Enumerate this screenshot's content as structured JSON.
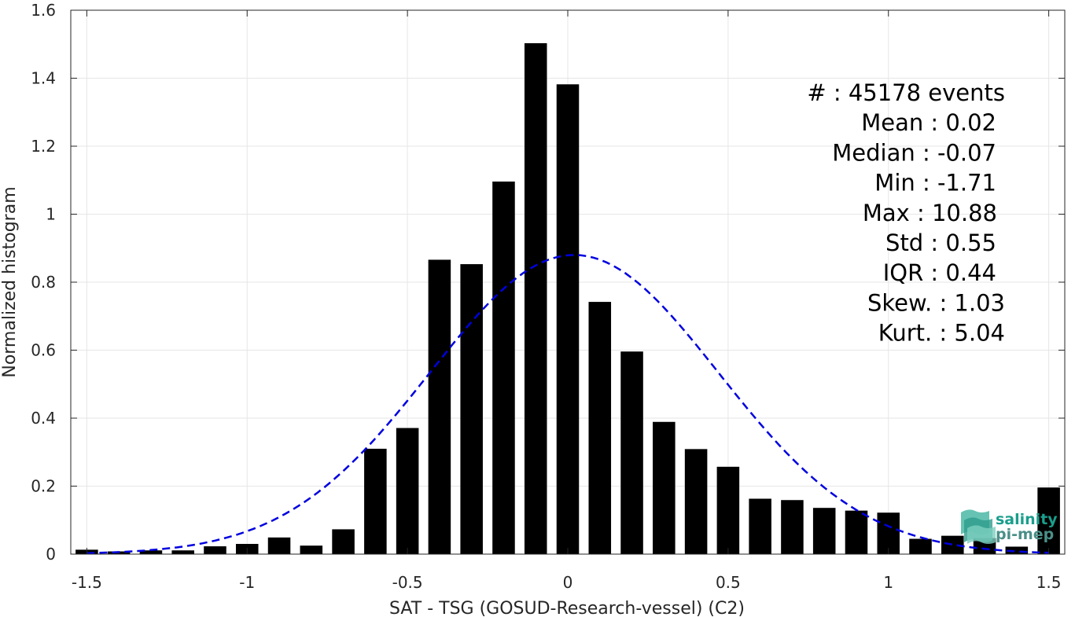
{
  "chart_data": {
    "type": "bar",
    "xlabel": "SAT - TSG (GOSUD-Research-vessel) (C2)",
    "ylabel": "Normalized histogram",
    "xlim": [
      -1.55,
      1.55
    ],
    "ylim": [
      0,
      1.6
    ],
    "xticks": [
      -1.5,
      -1,
      -0.5,
      0,
      0.5,
      1,
      1.5
    ],
    "xtick_labels": [
      "-1.5",
      "-1",
      "-0.5",
      "0",
      "0.5",
      "1",
      "1.5"
    ],
    "yticks": [
      0,
      0.2,
      0.4,
      0.6,
      0.8,
      1,
      1.2,
      1.4,
      1.6
    ],
    "ytick_labels": [
      "0",
      "0.2",
      "0.4",
      "0.6",
      "0.8",
      "1",
      "1.2",
      "1.4",
      "1.6"
    ],
    "grid": true,
    "bar_width": 0.07,
    "bar_color": "#000000",
    "bins": [
      -1.5,
      -1.4,
      -1.3,
      -1.2,
      -1.1,
      -1.0,
      -0.9,
      -0.8,
      -0.7,
      -0.6,
      -0.5,
      -0.4,
      -0.3,
      -0.2,
      -0.1,
      0.0,
      0.1,
      0.2,
      0.3,
      0.4,
      0.5,
      0.6,
      0.7,
      0.8,
      0.9,
      1.0,
      1.1,
      1.2,
      1.3,
      1.4,
      1.5
    ],
    "values": [
      0.013,
      0.008,
      0.011,
      0.011,
      0.023,
      0.03,
      0.049,
      0.025,
      0.073,
      0.31,
      0.371,
      0.866,
      0.853,
      1.096,
      1.503,
      1.382,
      0.742,
      0.596,
      0.389,
      0.309,
      0.257,
      0.163,
      0.159,
      0.136,
      0.128,
      0.122,
      0.045,
      0.054,
      0.047,
      0.022,
      0.196
    ],
    "gaussian_fit": {
      "mean": 0.02,
      "std": 0.45,
      "peak": 0.88,
      "color": "#0000e0",
      "style": "dashed"
    },
    "stats": [
      {
        "label": "#  : 45178 events"
      },
      {
        "label": "Mean : 0.02"
      },
      {
        "label": "Median : -0.07"
      },
      {
        "label": "Min : -1.71"
      },
      {
        "label": "Max : 10.88"
      },
      {
        "label": "Std : 0.55"
      },
      {
        "label": "IQR : 0.44"
      },
      {
        "label": "Skew. : 1.03"
      },
      {
        "label": "Kurt. : 5.04"
      }
    ]
  },
  "logo": {
    "line1": "salinity",
    "line2": "pi-mep",
    "color": "#1a9e8c"
  }
}
